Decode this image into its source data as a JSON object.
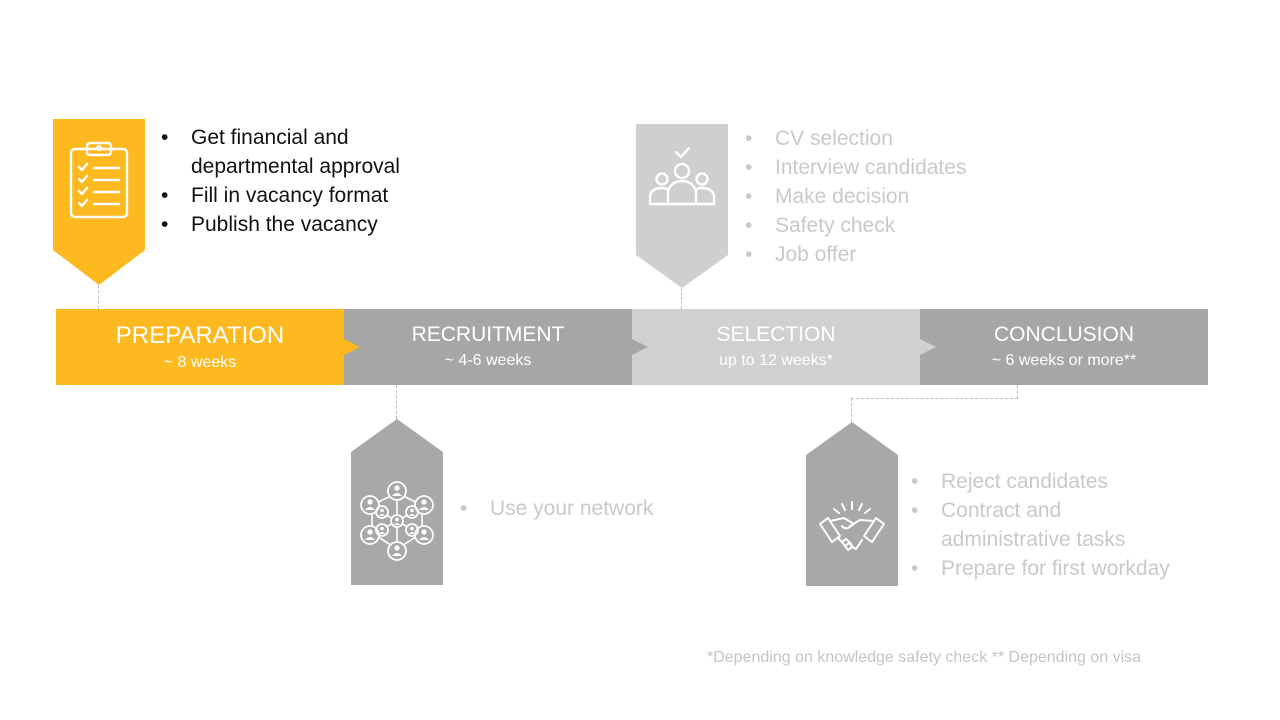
{
  "colors": {
    "preparation": "#fdb91f",
    "recruitment": "#a6a6a6",
    "selection": "#d0d0d0",
    "conclusion": "#a6a6a6",
    "tag_grey": "#a8a8a8",
    "tag_light_grey": "#cfcfcf",
    "muted_text": "#c9c9c9"
  },
  "phases": [
    {
      "title": "PREPARATION",
      "duration": "~ 8 weeks",
      "icon": "clipboard-checklist-icon"
    },
    {
      "title": "RECRUITMENT",
      "duration": "~ 4-6 weeks",
      "icon": "network-people-icon"
    },
    {
      "title": "SELECTION",
      "duration": "up to 12 weeks*",
      "icon": "group-checkmark-icon"
    },
    {
      "title": "CONCLUSION",
      "duration": "~ 6 weeks or more**",
      "icon": "handshake-icon"
    }
  ],
  "tasks": {
    "preparation": [
      "Get financial and departmental approval",
      "Fill in vacancy format",
      "Publish the vacancy"
    ],
    "recruitment": [
      "Use your network"
    ],
    "selection": [
      "CV selection",
      "Interview candidates",
      "Make decision",
      "Safety check",
      "Job offer"
    ],
    "conclusion": [
      "Reject candidates",
      "Contract and administrative tasks",
      "Prepare for first workday"
    ]
  },
  "footnote": "*Depending on knowledge safety check ** Depending on visa"
}
